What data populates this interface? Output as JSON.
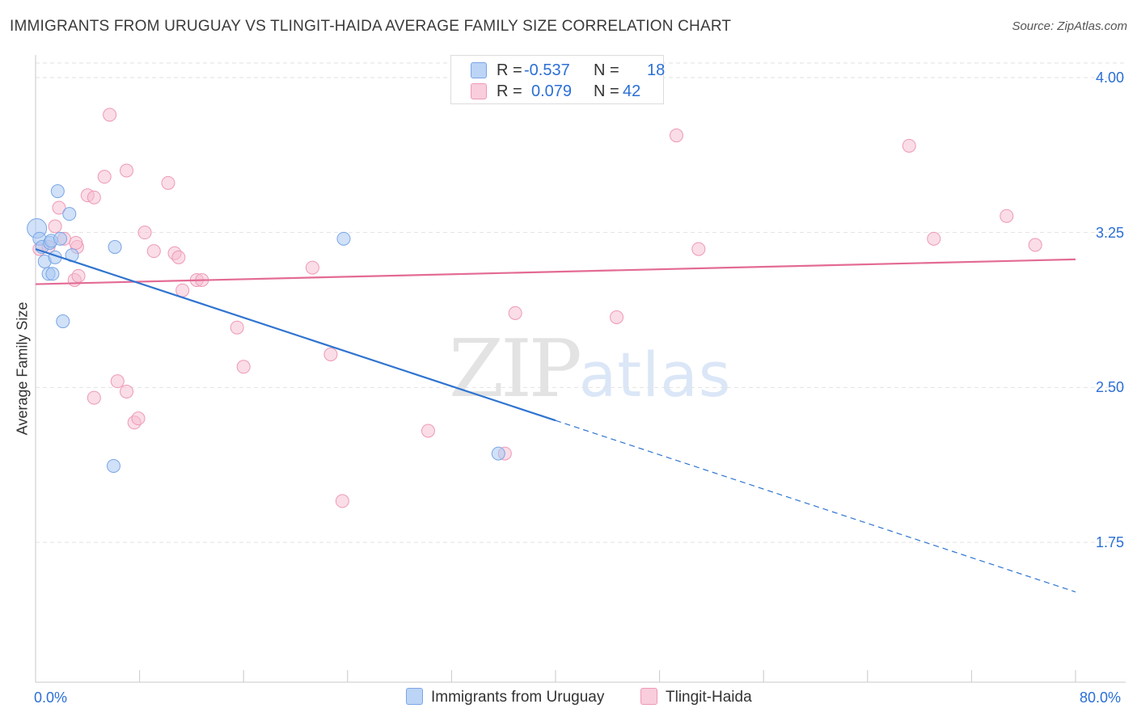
{
  "title": "IMMIGRANTS FROM URUGUAY VS TLINGIT-HAIDA AVERAGE FAMILY SIZE CORRELATION CHART",
  "source": "Source: ZipAtlas.com",
  "watermark": {
    "zip": "ZIP",
    "atlas": "atlas"
  },
  "legend": {
    "r_label": "R =",
    "n_label": "N =",
    "series1": {
      "r": "-0.537",
      "n": "18"
    },
    "series2": {
      "r": "0.079",
      "n": "42"
    }
  },
  "colors": {
    "blue_fill": "#a9c8f2",
    "blue_stroke": "#7aa6e6",
    "blue_line": "#2f74d0",
    "pink_fill": "#f6bcd0",
    "pink_stroke": "#ee99b6",
    "pink_line": "#e36b95",
    "grid": "#e2e2e2",
    "axis_label": "#2b6fd6"
  },
  "chart_data": {
    "type": "scatter",
    "title": "IMMIGRANTS FROM URUGUAY VS TLINGIT-HAIDA AVERAGE FAMILY SIZE CORRELATION CHART",
    "xlabel": "",
    "ylabel": "Average Family Size",
    "xlim": [
      0,
      80
    ],
    "ylim": [
      1.05,
      4.2
    ],
    "y_ticks": [
      4.0,
      3.25,
      2.5,
      1.75
    ],
    "y_tick_labels": [
      "4.00",
      "3.25",
      "2.50",
      "1.75"
    ],
    "x_tick_labels": [
      "0.0%",
      "80.0%"
    ],
    "grid": true,
    "legend_position": "top-center",
    "series": [
      {
        "name": "Immigrants from Uruguay",
        "color": "blue",
        "points": [
          [
            0.1,
            3.27
          ],
          [
            0.3,
            3.22
          ],
          [
            0.5,
            3.18
          ],
          [
            0.7,
            3.11
          ],
          [
            1.0,
            3.05
          ],
          [
            1.1,
            3.2
          ],
          [
            1.2,
            3.21
          ],
          [
            1.3,
            3.05
          ],
          [
            1.5,
            3.13
          ],
          [
            1.7,
            3.45
          ],
          [
            1.9,
            3.22
          ],
          [
            2.1,
            2.82
          ],
          [
            2.6,
            3.34
          ],
          [
            2.8,
            3.14
          ],
          [
            6.1,
            3.18
          ],
          [
            6.0,
            2.12
          ],
          [
            23.7,
            3.22
          ],
          [
            35.6,
            2.18
          ]
        ],
        "trend": {
          "x0": 0.0,
          "y0": 3.17,
          "x_solid_end": 40.0,
          "x1": 80.0,
          "y1": 1.51
        }
      },
      {
        "name": "Tlingit-Haida",
        "color": "pink",
        "points": [
          [
            0.3,
            3.17
          ],
          [
            1.0,
            3.18
          ],
          [
            1.5,
            3.28
          ],
          [
            1.8,
            3.37
          ],
          [
            3.0,
            3.02
          ],
          [
            3.2,
            3.18
          ],
          [
            3.3,
            3.04
          ],
          [
            4.0,
            3.43
          ],
          [
            4.5,
            3.42
          ],
          [
            4.5,
            2.45
          ],
          [
            5.3,
            3.52
          ],
          [
            5.7,
            3.82
          ],
          [
            6.3,
            2.53
          ],
          [
            7.0,
            3.55
          ],
          [
            7.0,
            2.48
          ],
          [
            7.6,
            2.33
          ],
          [
            7.9,
            2.35
          ],
          [
            8.4,
            3.25
          ],
          [
            9.1,
            3.16
          ],
          [
            10.2,
            3.49
          ],
          [
            10.7,
            3.15
          ],
          [
            11.0,
            3.13
          ],
          [
            11.3,
            2.97
          ],
          [
            12.4,
            3.02
          ],
          [
            12.8,
            3.02
          ],
          [
            15.5,
            2.79
          ],
          [
            16.0,
            2.6
          ],
          [
            21.3,
            3.08
          ],
          [
            22.7,
            2.66
          ],
          [
            23.6,
            1.95
          ],
          [
            30.2,
            2.29
          ],
          [
            36.1,
            2.18
          ],
          [
            36.9,
            2.86
          ],
          [
            44.7,
            2.84
          ],
          [
            49.3,
            3.72
          ],
          [
            51.0,
            3.17
          ],
          [
            67.2,
            3.67
          ],
          [
            69.1,
            3.22
          ],
          [
            74.7,
            3.33
          ],
          [
            76.9,
            3.19
          ],
          [
            3.1,
            3.2
          ],
          [
            2.2,
            3.22
          ]
        ],
        "trend": {
          "x0": 0.0,
          "y0": 3.0,
          "x1": 80.0,
          "y1": 3.12
        }
      }
    ]
  },
  "bottom_legend": {
    "series1_label": "Immigrants from Uruguay",
    "series2_label": "Tlingit-Haida"
  }
}
